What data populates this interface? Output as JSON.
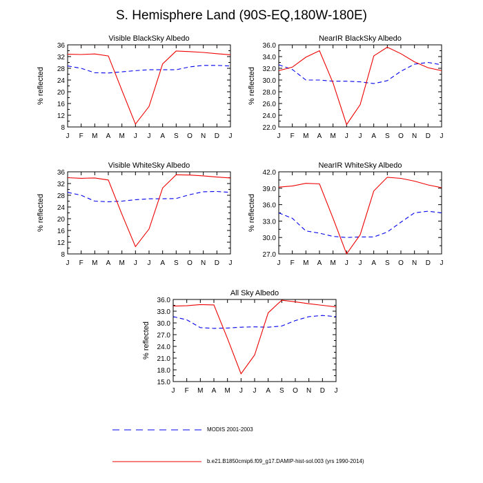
{
  "page": {
    "title": "S. Hemisphere Land (90S-EQ,180W-180E)"
  },
  "colors": {
    "modis": "#0000ee",
    "model": "#ee0000",
    "axis": "#000000"
  },
  "legend": [
    {
      "label": "MODIS 2001-2003",
      "style": "dashed",
      "color": "#0000ee"
    },
    {
      "label": "b.e21.B1850cmip6.f09_g17.DAMIP-hist-sol.003 (yrs 1990-2014)",
      "style": "solid",
      "color": "#ee0000"
    }
  ],
  "chart_data": [
    {
      "type": "line",
      "title": "Visible BlackSky Albedo",
      "xlabel": "",
      "ylabel": "% reflected",
      "categories": [
        "J",
        "F",
        "M",
        "A",
        "M",
        "J",
        "J",
        "A",
        "S",
        "O",
        "N",
        "D",
        "J"
      ],
      "ylim": [
        8,
        36
      ],
      "yticks": [
        "8",
        "12",
        "16",
        "20",
        "24",
        "28",
        "32",
        "36"
      ],
      "series": [
        {
          "name": "MODIS 2001-2003",
          "style": "dashed",
          "values": [
            28.8,
            28.0,
            26.5,
            26.4,
            26.8,
            27.2,
            27.5,
            27.5,
            27.5,
            28.5,
            29.0,
            29.0,
            28.8
          ]
        },
        {
          "name": "b.e21.B1850cmip6.f09_g17.DAMIP-hist-sol.003 (yrs 1990-2014)",
          "style": "solid",
          "values": [
            32.8,
            32.7,
            32.9,
            32.2,
            20.5,
            9.0,
            15.0,
            29.5,
            33.9,
            33.7,
            33.4,
            33.0,
            32.6
          ]
        }
      ]
    },
    {
      "type": "line",
      "title": "NearIR BlackSky Albedo",
      "xlabel": "",
      "ylabel": "% reflected",
      "categories": [
        "J",
        "F",
        "M",
        "A",
        "M",
        "J",
        "J",
        "A",
        "S",
        "O",
        "N",
        "D",
        "J"
      ],
      "ylim": [
        22,
        36
      ],
      "yticks": [
        "22.0",
        "24.0",
        "26.0",
        "28.0",
        "30.0",
        "32.0",
        "34.0",
        "36.0"
      ],
      "series": [
        {
          "name": "MODIS 2001-2003",
          "style": "dashed",
          "values": [
            32.6,
            31.8,
            30.0,
            30.0,
            29.8,
            29.8,
            29.7,
            29.4,
            29.9,
            31.5,
            32.7,
            33.0,
            32.6
          ]
        },
        {
          "name": "b.e21.B1850cmip6.f09_g17.DAMIP-hist-sol.003 (yrs 1990-2014)",
          "style": "solid",
          "values": [
            31.6,
            32.2,
            33.9,
            35.0,
            29.5,
            22.4,
            25.8,
            34.1,
            35.6,
            34.5,
            33.1,
            32.1,
            31.6
          ]
        }
      ]
    },
    {
      "type": "line",
      "title": "Visible WhiteSky Albedo",
      "xlabel": "",
      "ylabel": "% reflected",
      "categories": [
        "J",
        "F",
        "M",
        "A",
        "M",
        "J",
        "J",
        "A",
        "S",
        "O",
        "N",
        "D",
        "J"
      ],
      "ylim": [
        8,
        36
      ],
      "yticks": [
        "8",
        "12",
        "16",
        "20",
        "24",
        "28",
        "32",
        "36"
      ],
      "series": [
        {
          "name": "MODIS 2001-2003",
          "style": "dashed",
          "values": [
            29.0,
            28.0,
            26.0,
            25.8,
            26.0,
            26.5,
            26.8,
            26.8,
            26.9,
            28.2,
            29.2,
            29.3,
            29.0
          ]
        },
        {
          "name": "b.e21.B1850cmip6.f09_g17.DAMIP-hist-sol.003 (yrs 1990-2014)",
          "style": "solid",
          "values": [
            34.0,
            33.8,
            33.9,
            33.2,
            21.5,
            10.5,
            16.5,
            30.5,
            35.0,
            34.9,
            34.6,
            34.2,
            33.9
          ]
        }
      ]
    },
    {
      "type": "line",
      "title": "NearIR WhiteSky Albedo",
      "xlabel": "",
      "ylabel": "% reflected",
      "categories": [
        "J",
        "F",
        "M",
        "A",
        "M",
        "J",
        "J",
        "A",
        "S",
        "O",
        "N",
        "D",
        "J"
      ],
      "ylim": [
        27,
        42
      ],
      "yticks": [
        "27.0",
        "30.0",
        "33.0",
        "36.0",
        "39.0",
        "42.0"
      ],
      "series": [
        {
          "name": "MODIS 2001-2003",
          "style": "dashed",
          "values": [
            34.5,
            33.5,
            31.2,
            30.8,
            30.2,
            30.0,
            30.1,
            30.1,
            31.0,
            32.8,
            34.5,
            34.8,
            34.5
          ]
        },
        {
          "name": "b.e21.B1850cmip6.f09_g17.DAMIP-hist-sol.003 (yrs 1990-2014)",
          "style": "solid",
          "values": [
            39.2,
            39.4,
            39.9,
            39.8,
            33.5,
            27.0,
            30.5,
            38.5,
            41.0,
            40.8,
            40.3,
            39.6,
            39.1
          ]
        }
      ]
    },
    {
      "type": "line",
      "title": "All Sky Albedo",
      "xlabel": "",
      "ylabel": "% reflected",
      "categories": [
        "J",
        "F",
        "M",
        "A",
        "M",
        "J",
        "J",
        "A",
        "S",
        "O",
        "N",
        "D",
        "J"
      ],
      "ylim": [
        15,
        36
      ],
      "yticks": [
        "15.0",
        "18.0",
        "21.0",
        "24.0",
        "27.0",
        "30.0",
        "33.0",
        "36.0"
      ],
      "series": [
        {
          "name": "MODIS 2001-2003",
          "style": "dashed",
          "values": [
            31.6,
            30.8,
            28.8,
            28.6,
            28.7,
            28.9,
            29.0,
            28.9,
            29.2,
            30.6,
            31.6,
            31.9,
            31.6
          ]
        },
        {
          "name": "b.e21.B1850cmip6.f09_g17.DAMIP-hist-sol.003 (yrs 1990-2014)",
          "style": "solid",
          "values": [
            34.3,
            34.4,
            34.7,
            34.6,
            26.0,
            17.0,
            21.8,
            32.6,
            35.8,
            35.4,
            34.9,
            34.5,
            34.1
          ]
        }
      ]
    }
  ]
}
